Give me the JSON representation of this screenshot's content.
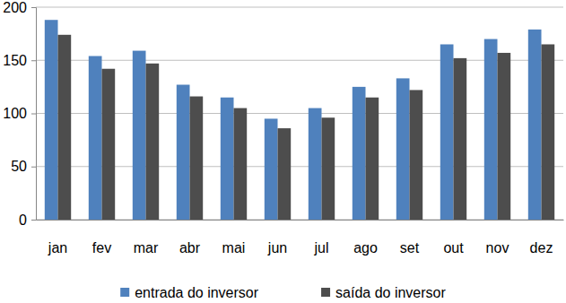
{
  "chart_data": {
    "type": "bar",
    "categories": [
      "jan",
      "fev",
      "mar",
      "abr",
      "mai",
      "jun",
      "jul",
      "ago",
      "set",
      "out",
      "nov",
      "dez"
    ],
    "series": [
      {
        "name": "entrada do inversor",
        "color": "#4f81bd",
        "values": [
          188,
          154,
          159,
          127,
          115,
          95,
          105,
          125,
          133,
          165,
          170,
          179
        ]
      },
      {
        "name": "saída do inversor",
        "color": "#4d4d4d",
        "values": [
          174,
          142,
          147,
          116,
          105,
          86,
          96,
          115,
          122,
          152,
          157,
          165
        ]
      }
    ],
    "ylim": [
      0,
      200
    ],
    "yticks": [
      0,
      50,
      100,
      150,
      200
    ],
    "grid": true,
    "legend": "bottom"
  }
}
